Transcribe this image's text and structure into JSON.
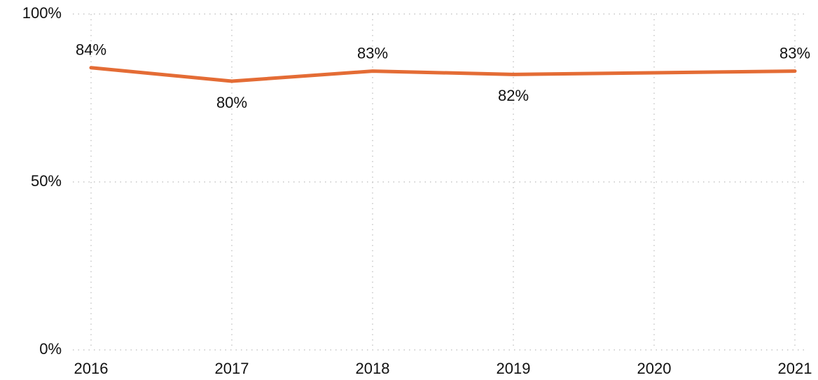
{
  "chart_data": {
    "type": "line",
    "categories": [
      "2016",
      "2017",
      "2018",
      "2019",
      "2020",
      "2021"
    ],
    "series": [
      {
        "color": "#e46c35",
        "values": [
          84,
          80,
          83,
          82,
          82.5,
          83
        ],
        "value_labels": [
          "84%",
          "80%",
          "83%",
          "82%",
          null,
          "83%"
        ]
      }
    ],
    "ylim": [
      0,
      100
    ],
    "yticks": [
      {
        "value": 0,
        "label": "0%"
      },
      {
        "value": 50,
        "label": "50%"
      },
      {
        "value": 100,
        "label": "100%"
      }
    ],
    "grid": true
  }
}
